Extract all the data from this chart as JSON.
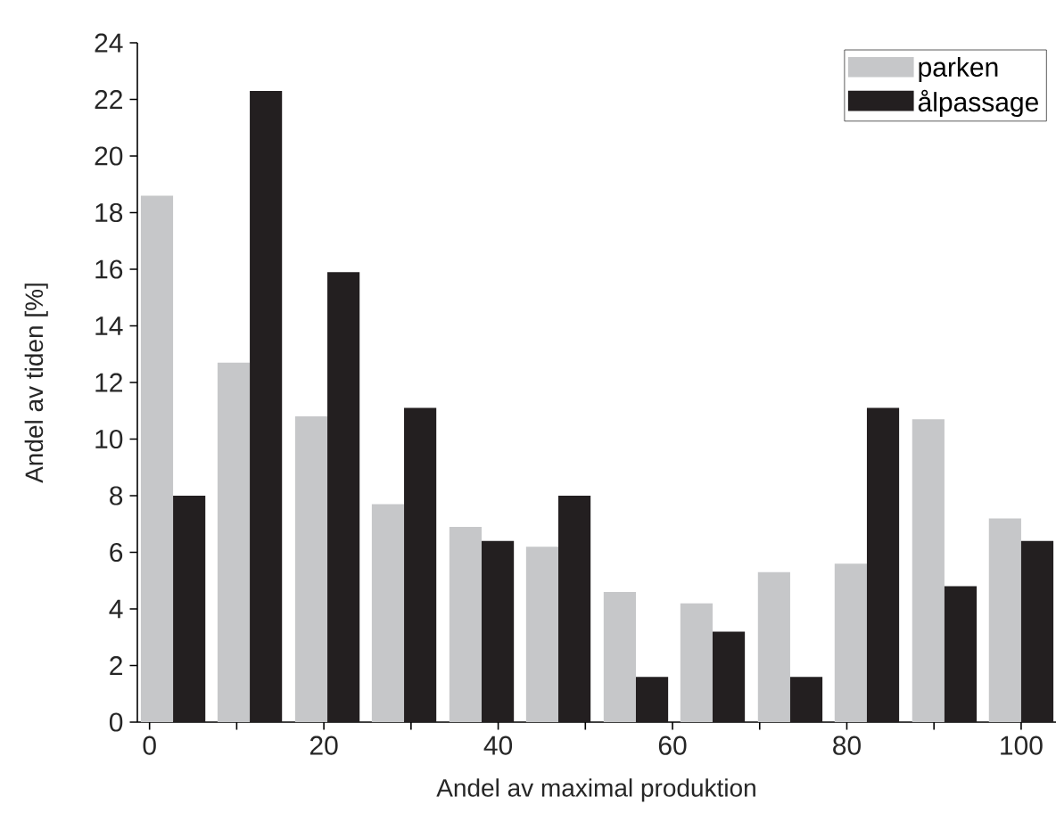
{
  "chart_data": {
    "type": "bar",
    "xlabel": "Andel av maximal produktion",
    "ylabel": "Andel av tiden [%]",
    "x": [
      2.7,
      11.5,
      20.4,
      29.2,
      38.1,
      46.9,
      55.8,
      64.6,
      73.5,
      82.3,
      91.2,
      100
    ],
    "series": [
      {
        "name": "parken",
        "color": "#c6c7c9",
        "values": [
          18.6,
          12.7,
          10.8,
          7.7,
          6.9,
          6.2,
          4.6,
          4.2,
          5.3,
          5.6,
          10.7,
          7.2
        ]
      },
      {
        "name": "ålpassage",
        "color": "#231f20",
        "values": [
          8.0,
          22.3,
          15.9,
          11.1,
          6.4,
          8.0,
          1.6,
          3.2,
          1.6,
          11.1,
          4.8,
          6.4
        ]
      }
    ],
    "xlim": [
      -1.4,
      104
    ],
    "ylim": [
      0,
      24
    ],
    "xticks": [
      0,
      {
        "value": 10,
        "label": null
      },
      20,
      {
        "value": 30,
        "label": null
      },
      40,
      {
        "value": 50,
        "label": null
      },
      60,
      {
        "value": 70,
        "label": null
      },
      80,
      {
        "value": 90,
        "label": null
      },
      100
    ],
    "yticks": [
      0,
      2,
      4,
      6,
      8,
      10,
      12,
      14,
      16,
      18,
      20,
      22,
      24
    ],
    "legend": "top right"
  }
}
